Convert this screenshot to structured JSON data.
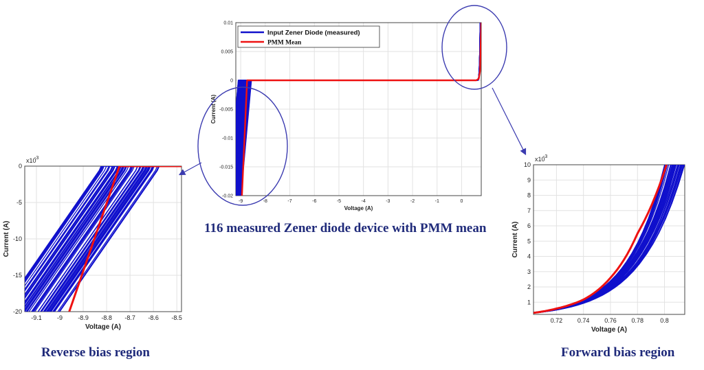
{
  "captions": {
    "main": "116 measured Zener diode device with PMM mean",
    "reverse": "Reverse bias region",
    "forward": "Forward bias region"
  },
  "colors": {
    "measured": "#1010cc",
    "mean": "#ee1111",
    "ellipse": "#3b3bb0"
  },
  "chart_data": [
    {
      "id": "main",
      "type": "line",
      "xlabel": "Voltage (A)",
      "ylabel": "Current (A)",
      "xlim": [
        -9.2,
        0.8
      ],
      "ylim": [
        -0.02,
        0.01
      ],
      "xticks": [
        -9,
        -8,
        -7,
        -6,
        -5,
        -4,
        -3,
        -2,
        -1,
        0
      ],
      "yticks": [
        0.01,
        0.005,
        0,
        -0.005,
        -0.01,
        -0.015,
        -0.02
      ],
      "ytick_labels": [
        "0.01",
        "0.005",
        "0",
        "-0.005",
        "-0.01",
        "-0.015",
        "-0.02"
      ],
      "grid": true,
      "legend": {
        "placement": "top-left",
        "entries": [
          "Input Zener Diode (measured)",
          "PMM Mean"
        ]
      },
      "series": [
        {
          "name": "Input Zener Diode (measured)",
          "count": 116,
          "breakdown_range": [
            -9.1,
            -8.55
          ],
          "slope_A_per_V": 0.047
        },
        {
          "name": "PMM Mean",
          "x": [
            -8.95,
            -8.74,
            0.6,
            0.7,
            0.75,
            0.8
          ],
          "y": [
            -0.02,
            0,
            0,
            0.0003,
            0.0016,
            0.01
          ]
        }
      ]
    },
    {
      "id": "reverse",
      "type": "line",
      "xlabel": "Voltage (A)",
      "ylabel": "Current (A)",
      "exponent_label": "x10",
      "exponent_power": "-3",
      "xlim": [
        -9.15,
        -8.48
      ],
      "ylim": [
        -20,
        0
      ],
      "xticks": [
        -9.1,
        -9,
        -8.9,
        -8.8,
        -8.7,
        -8.6,
        -8.5
      ],
      "yticks": [
        0,
        -5,
        -10,
        -15,
        -20
      ],
      "grid": true,
      "series": [
        {
          "name": "Input Zener Diode (measured)",
          "breakdown_range": [
            -8.83,
            -8.57
          ],
          "slope_mA_per_V": 47
        },
        {
          "name": "PMM Mean",
          "x": [
            -8.96,
            -8.745,
            -8.48
          ],
          "y": [
            -20,
            0,
            0
          ]
        }
      ]
    },
    {
      "id": "forward",
      "type": "line",
      "xlabel": "Voltage (A)",
      "ylabel": "Current (A)",
      "exponent_label": "x10",
      "exponent_power": "-3",
      "xlim": [
        0.703,
        0.815
      ],
      "ylim": [
        0.2,
        10
      ],
      "xticks": [
        0.72,
        0.74,
        0.76,
        0.78,
        0.8
      ],
      "yticks": [
        1,
        2,
        3,
        4,
        5,
        6,
        7,
        8,
        9,
        10
      ],
      "grid": true,
      "series": [
        {
          "name": "Input Zener Diode (measured)",
          "end_x_range": [
            0.8,
            0.815
          ]
        },
        {
          "name": "PMM Mean",
          "x": [
            0.703,
            0.72,
            0.74,
            0.76,
            0.78,
            0.8015
          ],
          "y": [
            0.3,
            0.58,
            1.17,
            2.6,
            5.5,
            10
          ]
        }
      ]
    }
  ]
}
